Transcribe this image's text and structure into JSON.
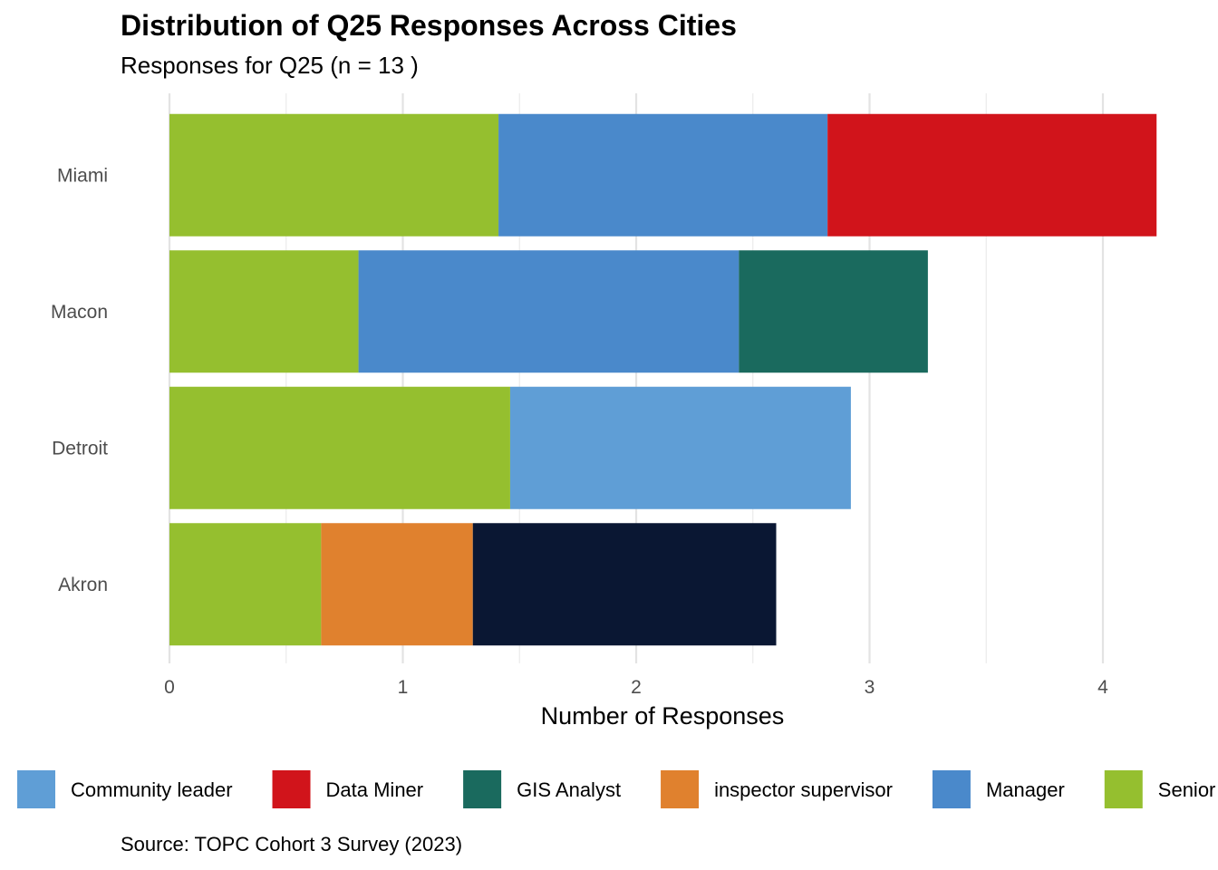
{
  "chart_data": {
    "type": "bar",
    "orientation": "horizontal",
    "stacked": true,
    "title": "Distribution of Q25 Responses Across Cities",
    "subtitle": "Responses for Q25 (n = 13 )",
    "caption": "Source: TOPC Cohort 3 Survey (2023)",
    "xlabel": "Number of Responses",
    "ylabel": "",
    "xlim": [
      0,
      4.25
    ],
    "xticks": [
      0,
      1,
      2,
      3,
      4
    ],
    "grid": true,
    "legend_position": "bottom",
    "categories": [
      "Akron",
      "Detroit",
      "Macon",
      "Miami"
    ],
    "series": [
      {
        "name": "Senior official",
        "color": "#95BF2F",
        "values": [
          0.65,
          1.46,
          0.81,
          1.41
        ]
      },
      {
        "name": "inspector supervisor",
        "color": "#E0812E",
        "values": [
          0.65,
          0,
          0,
          0
        ]
      },
      {
        "name": "Manager",
        "color": "#4A89CB",
        "values": [
          0,
          0,
          1.63,
          1.41
        ]
      },
      {
        "name": "Community leader",
        "color": "#5F9ED6",
        "values": [
          0,
          1.46,
          0,
          0
        ]
      },
      {
        "name": "GIS Analyst",
        "color": "#1A6A5E",
        "values": [
          0,
          0,
          0.81,
          0
        ]
      },
      {
        "name": "Data Miner",
        "color": "#D1141B",
        "values": [
          0,
          0,
          0,
          1.41
        ]
      },
      {
        "name": "",
        "color": "#0A1733",
        "values": [
          1.3,
          0,
          0,
          0
        ]
      }
    ],
    "legend": [
      {
        "name": "Community leader",
        "color": "#5F9ED6"
      },
      {
        "name": "Data Miner",
        "color": "#D1141B"
      },
      {
        "name": "GIS Analyst",
        "color": "#1A6A5E"
      },
      {
        "name": "inspector supervisor",
        "color": "#E0812E"
      },
      {
        "name": "Manager",
        "color": "#4A89CB"
      },
      {
        "name": "Senior official",
        "color": "#95BF2F"
      }
    ]
  }
}
